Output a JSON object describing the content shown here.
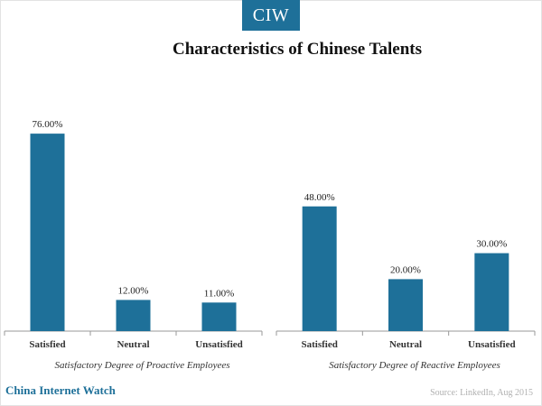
{
  "header": {
    "logo_text": "CIW",
    "title": "Characteristics of Chinese Talents"
  },
  "footer": {
    "brand": "China Internet Watch",
    "source": "Source: LinkedIn, Aug 2015"
  },
  "colors": {
    "bar": "#1e7099",
    "accent": "#1e7099"
  },
  "chart_data": [
    {
      "type": "bar",
      "title": "",
      "xlabel": "Satisfactory Degree of Proactive Employees",
      "ylabel": "",
      "categories": [
        "Satisfied",
        "Neutral",
        "Unsatisfied"
      ],
      "values": [
        76,
        12,
        11
      ],
      "value_labels": [
        "76.00%",
        "12.00%",
        "11.00%"
      ],
      "ylim": [
        0,
        100
      ],
      "grid": false,
      "legend": "none"
    },
    {
      "type": "bar",
      "title": "",
      "xlabel": "Satisfactory Degree of Reactive Employees",
      "ylabel": "",
      "categories": [
        "Satisfied",
        "Neutral",
        "Unsatisfied"
      ],
      "values": [
        48,
        20,
        30
      ],
      "value_labels": [
        "48.00%",
        "20.00%",
        "30.00%"
      ],
      "ylim": [
        0,
        100
      ],
      "grid": false,
      "legend": "none"
    }
  ]
}
